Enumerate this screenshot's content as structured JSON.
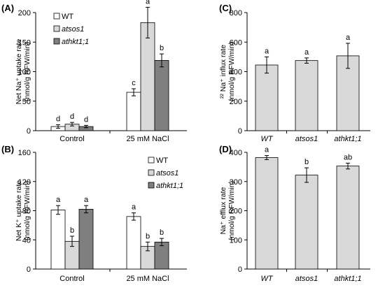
{
  "colors": {
    "white_bar": "#ffffff",
    "light_bar": "#d9d9d9",
    "dark_bar": "#7f7f7f",
    "axis": "#000000"
  },
  "chart_data": [
    {
      "panel": "(A)",
      "type": "bar",
      "ylabel": [
        "Net Na⁺ uptake rate",
        "(nmol/g RFW/min)"
      ],
      "ylim": [
        0,
        200
      ],
      "yticks": [
        0,
        50,
        100,
        150,
        200
      ],
      "categories": [
        "Control",
        "25 mM NaCl"
      ],
      "legend": "top-left",
      "series": [
        {
          "name": "WT",
          "color": "#ffffff",
          "values": [
            7,
            65
          ],
          "errors": [
            3,
            6
          ],
          "letters": [
            "d",
            "c"
          ]
        },
        {
          "name": "atsos1",
          "color": "#d9d9d9",
          "values": [
            11,
            183
          ],
          "errors": [
            3,
            26
          ],
          "letters": [
            "d",
            "a"
          ]
        },
        {
          "name": "athkt1;1",
          "color": "#7f7f7f",
          "values": [
            7,
            119
          ],
          "errors": [
            2,
            11
          ],
          "letters": [
            "d",
            "b"
          ]
        }
      ]
    },
    {
      "panel": "(B)",
      "type": "bar",
      "ylabel": [
        "Net K⁺ uptake rate",
        "(nmol/g RFW/min)"
      ],
      "ylim": [
        0,
        160
      ],
      "yticks": [
        0,
        40,
        80,
        120,
        160
      ],
      "categories": [
        "Control",
        "25 mM NaCl"
      ],
      "legend": "top-right",
      "series": [
        {
          "name": "WT",
          "color": "#ffffff",
          "values": [
            81,
            72
          ],
          "errors": [
            6,
            5
          ],
          "letters": [
            "a",
            "a"
          ]
        },
        {
          "name": "atsos1",
          "color": "#d9d9d9",
          "values": [
            38,
            31
          ],
          "errors": [
            7,
            6
          ],
          "letters": [
            "b",
            "b"
          ]
        },
        {
          "name": "athkt1;1",
          "color": "#7f7f7f",
          "values": [
            82,
            37
          ],
          "errors": [
            5,
            5
          ],
          "letters": [
            "a",
            "b"
          ]
        }
      ]
    },
    {
      "panel": "(C)",
      "type": "bar",
      "ylabel": [
        "²² Na⁺ influx rate",
        "(nmol/g RFW/min)"
      ],
      "ylim": [
        0,
        800
      ],
      "yticks": [
        0,
        200,
        400,
        600,
        800
      ],
      "categories": [
        "WT",
        "atsos1",
        "athkt1;1"
      ],
      "bar_color": "#d9d9d9",
      "values": [
        445,
        475,
        507
      ],
      "errors": [
        55,
        18,
        85
      ],
      "letters": [
        "a",
        "a",
        "a"
      ]
    },
    {
      "panel": "(D)",
      "type": "bar",
      "ylabel": [
        "Na⁺ efflux rate",
        "(nmol/g RFW/min)"
      ],
      "ylim": [
        0,
        400
      ],
      "yticks": [
        0,
        100,
        200,
        300,
        400
      ],
      "categories": [
        "WT",
        "atsos1",
        "athkt1;1"
      ],
      "bar_color": "#d9d9d9",
      "values": [
        382,
        322,
        353
      ],
      "errors": [
        7,
        25,
        10
      ],
      "letters": [
        "a",
        "b",
        "ab"
      ]
    }
  ]
}
